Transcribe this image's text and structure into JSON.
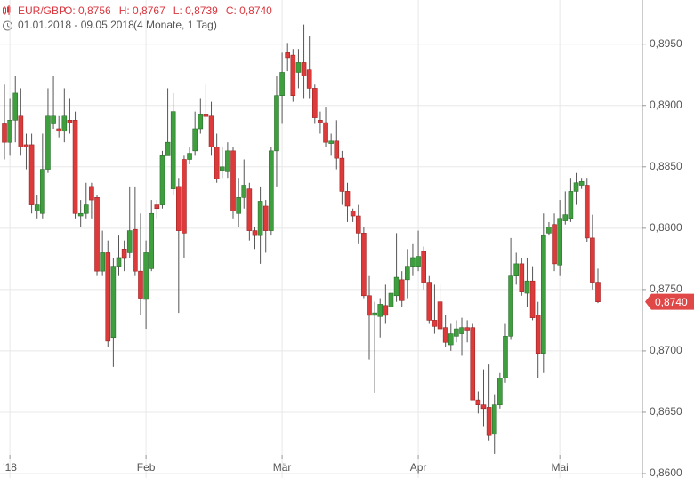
{
  "chart_data": {
    "type": "candlestick",
    "title": "EUR/GBP",
    "ohlc_labels": [
      "O: 0,8756",
      "H: 0,8767",
      "L: 0,8739",
      "C: 0,8740"
    ],
    "subtitle": "01.01.2018 - 09.05.2018",
    "period": "(4 Monate, 1 Tag)",
    "up_color": "#3f9f3f",
    "down_color": "#dd3b3b",
    "grid": true,
    "ylim": [
      0.86,
      0.8986
    ],
    "yticks": [
      {
        "value": 0.86,
        "label": "0,8600"
      },
      {
        "value": 0.865,
        "label": "0,8650"
      },
      {
        "value": 0.87,
        "label": "0,8700"
      },
      {
        "value": 0.875,
        "label": "0,8750"
      },
      {
        "value": 0.88,
        "label": "0,8800"
      },
      {
        "value": 0.885,
        "label": "0,8850"
      },
      {
        "value": 0.89,
        "label": "0,8900"
      },
      {
        "value": 0.895,
        "label": "0,8950"
      }
    ],
    "last_price": {
      "value": 0.874,
      "label": "0,8740"
    },
    "categories": [
      null,
      "'18",
      null,
      null,
      null,
      null,
      null,
      null,
      null,
      null,
      null,
      null,
      null,
      null,
      null,
      null,
      null,
      null,
      null,
      null,
      null,
      null,
      null,
      null,
      null,
      null,
      "Feb",
      null,
      null,
      null,
      null,
      null,
      null,
      null,
      null,
      null,
      null,
      null,
      null,
      null,
      null,
      null,
      null,
      null,
      null,
      null,
      null,
      null,
      null,
      null,
      null,
      "Mär",
      null,
      null,
      null,
      null,
      null,
      null,
      null,
      null,
      null,
      null,
      null,
      null,
      null,
      null,
      null,
      null,
      null,
      null,
      null,
      null,
      null,
      null,
      null,
      null,
      "Apr",
      null,
      null,
      null,
      null,
      null,
      null,
      null,
      null,
      null,
      null,
      null,
      null,
      null,
      null,
      null,
      null,
      null,
      null,
      null,
      null,
      null,
      null,
      null,
      null,
      null,
      "Mai",
      null,
      null,
      null,
      null,
      null,
      null,
      null
    ],
    "open": [
      0.8885,
      0.887,
      0.8888,
      0.8892,
      0.8868,
      0.8868,
      0.8814,
      0.8812,
      0.8848,
      0.8885,
      0.8881,
      0.8879,
      0.8888,
      0.8888,
      0.881,
      0.8812,
      0.8834,
      0.8825,
      0.8765,
      0.878,
      0.8711,
      0.8769,
      0.8783,
      0.878,
      0.8799,
      0.8765,
      0.8742,
      0.8767,
      0.8819,
      0.8819,
      0.8859,
      0.8832,
      0.8834,
      0.8856,
      0.8856,
      0.8863,
      0.8881,
      0.8893,
      0.8892,
      0.8866,
      0.8847,
      0.8846,
      0.8863,
      0.8812,
      0.8825,
      0.8832,
      0.8798,
      0.8794,
      0.8818,
      0.8798,
      0.8863,
      0.8908,
      0.8943,
      0.8941,
      0.8927,
      0.8935,
      0.8929,
      0.8914,
      0.8888,
      0.8886,
      0.8869,
      0.8871,
      0.8857,
      0.883,
      0.8814,
      0.881,
      0.8796,
      0.8745,
      0.8729,
      0.8728,
      0.8737,
      0.8736,
      0.8745,
      0.8758,
      0.8758,
      0.8769,
      0.8769,
      0.8781,
      0.8756,
      0.8725,
      0.874,
      0.8719,
      0.8705,
      0.8712,
      0.8714,
      0.8719,
      0.8719,
      0.866,
      0.8656,
      0.8654,
      0.8632,
      0.8656,
      0.8678,
      0.8712,
      0.8761,
      0.8771,
      0.8747,
      0.8757,
      0.8729,
      0.8698,
      0.8796,
      0.8803,
      0.877,
      0.8806,
      0.8808,
      0.883,
      0.8835,
      0.8835,
      0.8792,
      0.8756
    ],
    "high": [
      0.8917,
      0.8906,
      0.8924,
      0.8914,
      0.8877,
      0.8877,
      0.8827,
      0.8877,
      0.8914,
      0.8924,
      0.8892,
      0.8914,
      0.8906,
      0.8895,
      0.8823,
      0.8837,
      0.8837,
      0.8827,
      0.8798,
      0.879,
      0.8776,
      0.8794,
      0.879,
      0.8834,
      0.8834,
      0.8812,
      0.879,
      0.8823,
      0.8823,
      0.8863,
      0.8914,
      0.891,
      0.8841,
      0.8859,
      0.8866,
      0.8895,
      0.8906,
      0.8917,
      0.8903,
      0.8877,
      0.8866,
      0.887,
      0.8866,
      0.8841,
      0.8856,
      0.8837,
      0.8801,
      0.8834,
      0.8823,
      0.8866,
      0.8924,
      0.8943,
      0.8951,
      0.8946,
      0.8946,
      0.8966,
      0.8957,
      0.8917,
      0.8895,
      0.8899,
      0.8877,
      0.8888,
      0.8863,
      0.8837,
      0.8816,
      0.8819,
      0.8801,
      0.8761,
      0.874,
      0.8743,
      0.8754,
      0.8761,
      0.8796,
      0.8765,
      0.8783,
      0.8787,
      0.8798,
      0.8785,
      0.8761,
      0.8754,
      0.8754,
      0.8729,
      0.8722,
      0.8725,
      0.8727,
      0.8725,
      0.8722,
      0.8667,
      0.8685,
      0.8689,
      0.8664,
      0.8682,
      0.8722,
      0.8792,
      0.878,
      0.8776,
      0.8776,
      0.8769,
      0.874,
      0.8812,
      0.8805,
      0.8812,
      0.8823,
      0.883,
      0.8841,
      0.8845,
      0.8841,
      0.8841,
      0.8811,
      0.8767
    ],
    "low": [
      0.8856,
      0.8859,
      0.887,
      0.8859,
      0.8848,
      0.8812,
      0.8808,
      0.8808,
      0.8845,
      0.8881,
      0.8874,
      0.887,
      0.8877,
      0.8808,
      0.8801,
      0.8808,
      0.8808,
      0.8761,
      0.8761,
      0.8703,
      0.8687,
      0.8761,
      0.8765,
      0.8776,
      0.8761,
      0.8729,
      0.8718,
      0.8765,
      0.8808,
      0.8816,
      0.8859,
      0.8827,
      0.8731,
      0.8776,
      0.8852,
      0.8859,
      0.8877,
      0.8888,
      0.8859,
      0.8837,
      0.8841,
      0.8841,
      0.8808,
      0.8801,
      0.8816,
      0.879,
      0.8783,
      0.8771,
      0.878,
      0.8794,
      0.8834,
      0.8885,
      0.8928,
      0.8903,
      0.8914,
      0.8906,
      0.8906,
      0.8885,
      0.8877,
      0.8866,
      0.8859,
      0.8848,
      0.8819,
      0.8805,
      0.8805,
      0.8787,
      0.8743,
      0.8693,
      0.8666,
      0.8711,
      0.8722,
      0.8725,
      0.874,
      0.8736,
      0.8743,
      0.8761,
      0.8765,
      0.875,
      0.8722,
      0.8714,
      0.8711,
      0.8703,
      0.87,
      0.8707,
      0.8696,
      0.8707,
      0.866,
      0.8649,
      0.8638,
      0.8627,
      0.8616,
      0.8653,
      0.8674,
      0.8709,
      0.8754,
      0.8745,
      0.8736,
      0.8725,
      0.8678,
      0.8682,
      0.8794,
      0.8765,
      0.8761,
      0.8803,
      0.8805,
      0.8819,
      0.8832,
      0.8789,
      0.875,
      0.8739
    ],
    "close": [
      0.887,
      0.8888,
      0.891,
      0.8866,
      0.8866,
      0.8819,
      0.8819,
      0.8848,
      0.8892,
      0.8892,
      0.8879,
      0.8892,
      0.8886,
      0.8812,
      0.8812,
      0.8819,
      0.8823,
      0.8765,
      0.878,
      0.8708,
      0.8769,
      0.8776,
      0.8776,
      0.8798,
      0.8765,
      0.8743,
      0.878,
      0.8812,
      0.8816,
      0.8859,
      0.887,
      0.8895,
      0.8798,
      0.8796,
      0.8861,
      0.8881,
      0.8893,
      0.8891,
      0.8866,
      0.884,
      0.885,
      0.8863,
      0.8814,
      0.8825,
      0.8835,
      0.8798,
      0.8794,
      0.8822,
      0.8798,
      0.8863,
      0.8908,
      0.8927,
      0.8939,
      0.8908,
      0.8935,
      0.8924,
      0.8914,
      0.889,
      0.8886,
      0.887,
      0.8871,
      0.8857,
      0.883,
      0.8818,
      0.881,
      0.8796,
      0.8745,
      0.8729,
      0.8731,
      0.8738,
      0.8729,
      0.8747,
      0.876,
      0.8741,
      0.8769,
      0.8776,
      0.8777,
      0.8756,
      0.8725,
      0.872,
      0.8718,
      0.8707,
      0.8714,
      0.8718,
      0.8719,
      0.8717,
      0.866,
      0.8656,
      0.8653,
      0.8631,
      0.8656,
      0.8678,
      0.8712,
      0.8761,
      0.8771,
      0.8748,
      0.8757,
      0.8727,
      0.8698,
      0.8794,
      0.8801,
      0.8771,
      0.8808,
      0.8811,
      0.883,
      0.8837,
      0.8838,
      0.8792,
      0.8756,
      0.874
    ]
  }
}
